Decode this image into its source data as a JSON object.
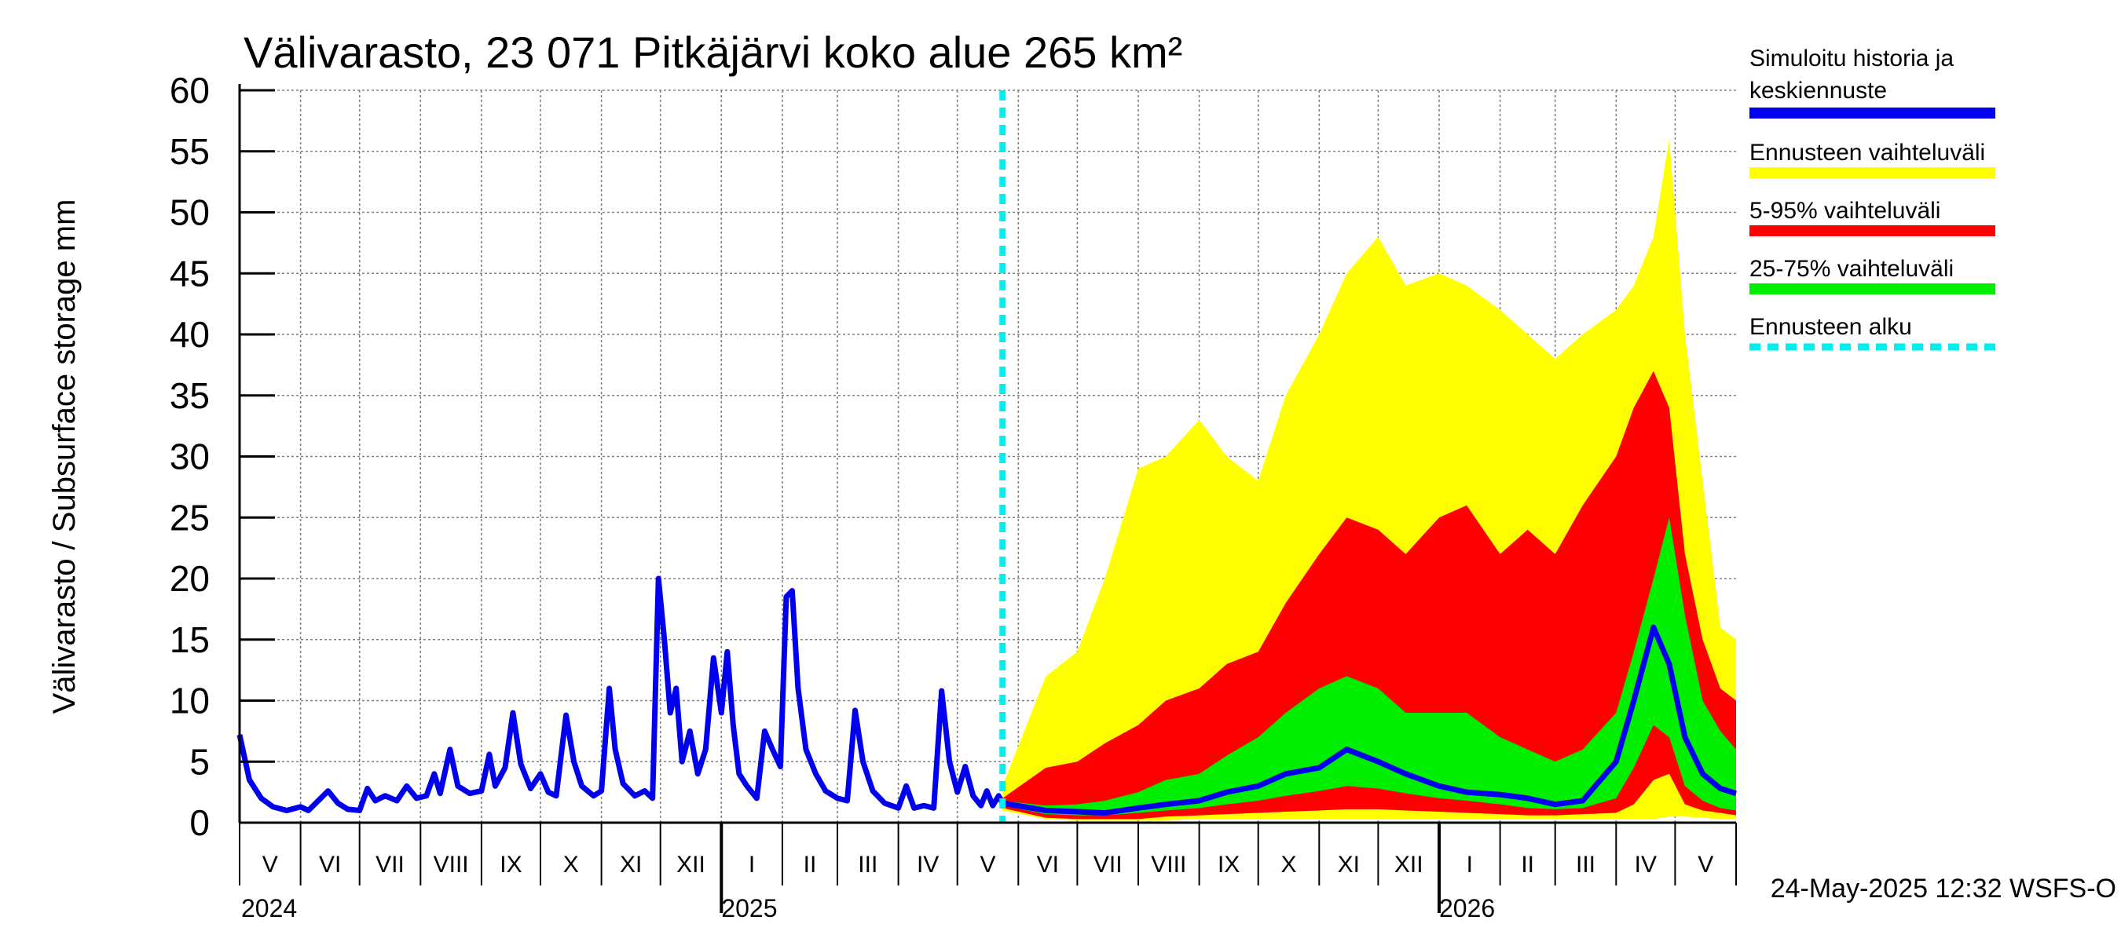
{
  "chart_data": {
    "type": "area",
    "title": "Välivarasto, 23 071 Pitkäjärvi koko alue 265 km²",
    "ylabel": "Välivarasto / Subsurface storage  mm",
    "ylim": [
      0,
      60
    ],
    "yticks": [
      0,
      5,
      10,
      15,
      20,
      25,
      30,
      35,
      40,
      45,
      50,
      55,
      60
    ],
    "xlim": [
      "2024-05-01",
      "2026-06-01"
    ],
    "grid": true,
    "legend_position": "right",
    "months": [
      "V",
      "VI",
      "VII",
      "VIII",
      "IX",
      "X",
      "XI",
      "XII",
      "I",
      "II",
      "III",
      "IV",
      "V",
      "VI",
      "VII",
      "VIII",
      "IX",
      "X",
      "XI",
      "XII",
      "I",
      "II",
      "III",
      "IV",
      "V"
    ],
    "years": [
      "2024",
      "2025",
      "2026"
    ],
    "forecast_start": "2025-05-24",
    "history": {
      "name": "Simuloitu historia ja keskiennuste",
      "color": "#0000ee",
      "points": [
        [
          "2024-05-01",
          7.2
        ],
        [
          "2024-05-06",
          3.5
        ],
        [
          "2024-05-12",
          2.0
        ],
        [
          "2024-05-18",
          1.3
        ],
        [
          "2024-05-25",
          1.0
        ],
        [
          "2024-06-01",
          1.3
        ],
        [
          "2024-06-05",
          1.0
        ],
        [
          "2024-06-10",
          1.8
        ],
        [
          "2024-06-15",
          2.6
        ],
        [
          "2024-06-20",
          1.6
        ],
        [
          "2024-06-25",
          1.1
        ],
        [
          "2024-07-01",
          1.0
        ],
        [
          "2024-07-05",
          2.8
        ],
        [
          "2024-07-09",
          1.8
        ],
        [
          "2024-07-14",
          2.2
        ],
        [
          "2024-07-20",
          1.8
        ],
        [
          "2024-07-25",
          3.0
        ],
        [
          "2024-07-30",
          2.0
        ],
        [
          "2024-08-04",
          2.2
        ],
        [
          "2024-08-08",
          4.0
        ],
        [
          "2024-08-11",
          2.4
        ],
        [
          "2024-08-16",
          6.0
        ],
        [
          "2024-08-20",
          3.0
        ],
        [
          "2024-08-26",
          2.4
        ],
        [
          "2024-09-01",
          2.6
        ],
        [
          "2024-09-05",
          5.6
        ],
        [
          "2024-09-08",
          3.0
        ],
        [
          "2024-09-13",
          4.5
        ],
        [
          "2024-09-17",
          9.0
        ],
        [
          "2024-09-21",
          4.8
        ],
        [
          "2024-09-26",
          2.8
        ],
        [
          "2024-10-01",
          4.0
        ],
        [
          "2024-10-05",
          2.5
        ],
        [
          "2024-10-09",
          2.2
        ],
        [
          "2024-10-14",
          8.8
        ],
        [
          "2024-10-18",
          5.0
        ],
        [
          "2024-10-22",
          3.0
        ],
        [
          "2024-10-28",
          2.2
        ],
        [
          "2024-11-01",
          2.6
        ],
        [
          "2024-11-05",
          11.0
        ],
        [
          "2024-11-08",
          6.0
        ],
        [
          "2024-11-12",
          3.2
        ],
        [
          "2024-11-18",
          2.2
        ],
        [
          "2024-11-23",
          2.6
        ],
        [
          "2024-11-27",
          2.0
        ],
        [
          "2024-11-30",
          20.0
        ],
        [
          "2024-12-03",
          15.0
        ],
        [
          "2024-12-06",
          9.0
        ],
        [
          "2024-12-09",
          11.0
        ],
        [
          "2024-12-12",
          5.0
        ],
        [
          "2024-12-16",
          7.5
        ],
        [
          "2024-12-20",
          4.0
        ],
        [
          "2024-12-24",
          6.0
        ],
        [
          "2024-12-28",
          13.5
        ],
        [
          "2025-01-01",
          9.0
        ],
        [
          "2025-01-04",
          14.0
        ],
        [
          "2025-01-07",
          8.0
        ],
        [
          "2025-01-10",
          4.0
        ],
        [
          "2025-01-14",
          3.0
        ],
        [
          "2025-01-19",
          2.0
        ],
        [
          "2025-01-23",
          7.5
        ],
        [
          "2025-01-27",
          6.0
        ],
        [
          "2025-01-31",
          4.6
        ],
        [
          "2025-02-03",
          18.5
        ],
        [
          "2025-02-06",
          19.0
        ],
        [
          "2025-02-09",
          11.0
        ],
        [
          "2025-02-13",
          6.0
        ],
        [
          "2025-02-18",
          4.0
        ],
        [
          "2025-02-23",
          2.6
        ],
        [
          "2025-03-01",
          2.0
        ],
        [
          "2025-03-06",
          1.8
        ],
        [
          "2025-03-10",
          9.2
        ],
        [
          "2025-03-14",
          5.0
        ],
        [
          "2025-03-19",
          2.6
        ],
        [
          "2025-03-25",
          1.6
        ],
        [
          "2025-04-01",
          1.2
        ],
        [
          "2025-04-05",
          3.0
        ],
        [
          "2025-04-09",
          1.2
        ],
        [
          "2025-04-14",
          1.4
        ],
        [
          "2025-04-19",
          1.2
        ],
        [
          "2025-04-23",
          10.8
        ],
        [
          "2025-04-27",
          5.0
        ],
        [
          "2025-05-01",
          2.5
        ],
        [
          "2025-05-05",
          4.6
        ],
        [
          "2025-05-09",
          2.2
        ],
        [
          "2025-05-13",
          1.4
        ],
        [
          "2025-05-16",
          2.6
        ],
        [
          "2025-05-19",
          1.4
        ],
        [
          "2025-05-22",
          2.2
        ],
        [
          "2025-05-24",
          1.6
        ]
      ]
    },
    "bands": [
      {
        "name": "Ennusteen vaihteluväli",
        "color": "#ffff00"
      },
      {
        "name": "5-95% vaihteluväli",
        "color": "#ff0000"
      },
      {
        "name": "25-75% vaihteluväli",
        "color": "#00ee00"
      }
    ],
    "forecast": {
      "x": [
        "2025-05-24",
        "2025-06-15",
        "2025-07-01",
        "2025-07-15",
        "2025-08-01",
        "2025-08-15",
        "2025-09-01",
        "2025-09-15",
        "2025-10-01",
        "2025-10-15",
        "2025-11-01",
        "2025-11-15",
        "2025-12-01",
        "2025-12-15",
        "2026-01-01",
        "2026-01-15",
        "2026-02-01",
        "2026-02-15",
        "2026-03-01",
        "2026-03-15",
        "2026-04-01",
        "2026-04-10",
        "2026-04-20",
        "2026-04-28",
        "2026-05-06",
        "2026-05-15",
        "2026-05-24",
        "2026-06-01"
      ],
      "max": [
        3.0,
        12.0,
        14.0,
        20.0,
        29.0,
        30.0,
        33.0,
        30.0,
        28.0,
        35.0,
        40.0,
        45.0,
        48.0,
        44.0,
        45.0,
        44.0,
        42.0,
        40.0,
        38.0,
        40.0,
        42.0,
        44.0,
        48.0,
        56.0,
        40.0,
        28.0,
        16.0,
        15.0
      ],
      "p95": [
        2.0,
        4.5,
        5.0,
        6.5,
        8.0,
        10.0,
        11.0,
        13.0,
        14.0,
        18.0,
        22.0,
        25.0,
        24.0,
        22.0,
        25.0,
        26.0,
        22.0,
        24.0,
        22.0,
        26.0,
        30.0,
        34.0,
        37.0,
        34.0,
        22.0,
        15.0,
        11.0,
        10.0
      ],
      "p75": [
        1.8,
        1.4,
        1.5,
        1.8,
        2.5,
        3.5,
        4.0,
        5.5,
        7.0,
        9.0,
        11.0,
        12.0,
        11.0,
        9.0,
        9.0,
        9.0,
        7.0,
        6.0,
        5.0,
        6.0,
        9.0,
        14.0,
        20.0,
        25.0,
        17.0,
        10.0,
        7.5,
        6.0
      ],
      "median": [
        1.6,
        1.0,
        0.9,
        0.8,
        1.2,
        1.5,
        1.8,
        2.5,
        3.0,
        4.0,
        4.5,
        6.0,
        5.0,
        4.0,
        3.0,
        2.5,
        2.3,
        2.0,
        1.5,
        1.8,
        5.0,
        10.0,
        16.0,
        13.0,
        7.0,
        4.0,
        2.8,
        2.4
      ],
      "p25": [
        1.4,
        0.7,
        0.6,
        0.6,
        0.8,
        1.0,
        1.2,
        1.5,
        1.8,
        2.2,
        2.6,
        3.0,
        2.8,
        2.4,
        2.0,
        1.8,
        1.5,
        1.2,
        1.1,
        1.2,
        2.0,
        4.5,
        8.0,
        7.0,
        3.0,
        1.8,
        1.2,
        1.0
      ],
      "p5": [
        1.2,
        0.4,
        0.3,
        0.3,
        0.3,
        0.5,
        0.6,
        0.7,
        0.8,
        0.9,
        1.0,
        1.1,
        1.1,
        1.0,
        0.9,
        0.8,
        0.7,
        0.6,
        0.6,
        0.7,
        0.8,
        1.5,
        3.5,
        4.0,
        1.5,
        1.0,
        0.8,
        0.6
      ],
      "min": [
        1.0,
        0.3,
        0.2,
        0.2,
        0.2,
        0.2,
        0.3,
        0.3,
        0.3,
        0.3,
        0.3,
        0.3,
        0.3,
        0.3,
        0.3,
        0.3,
        0.3,
        0.3,
        0.3,
        0.3,
        0.3,
        0.3,
        0.3,
        0.5,
        0.5,
        0.4,
        0.3,
        0.3
      ]
    },
    "legend": [
      {
        "label1": "Simuloitu historia ja",
        "label2": "keskiennuste",
        "color": "#0000ee",
        "style": "solid"
      },
      {
        "label1": "Ennusteen vaihteluväli",
        "color": "#ffff00",
        "style": "solid"
      },
      {
        "label1": "5-95% vaihteluväli",
        "color": "#ff0000",
        "style": "solid"
      },
      {
        "label1": "25-75% vaihteluväli",
        "color": "#00ee00",
        "style": "solid"
      },
      {
        "label1": "Ennusteen alku",
        "color": "#00eeee",
        "style": "dashed"
      }
    ],
    "timestamp": "24-May-2025 12:32 WSFS-O"
  }
}
